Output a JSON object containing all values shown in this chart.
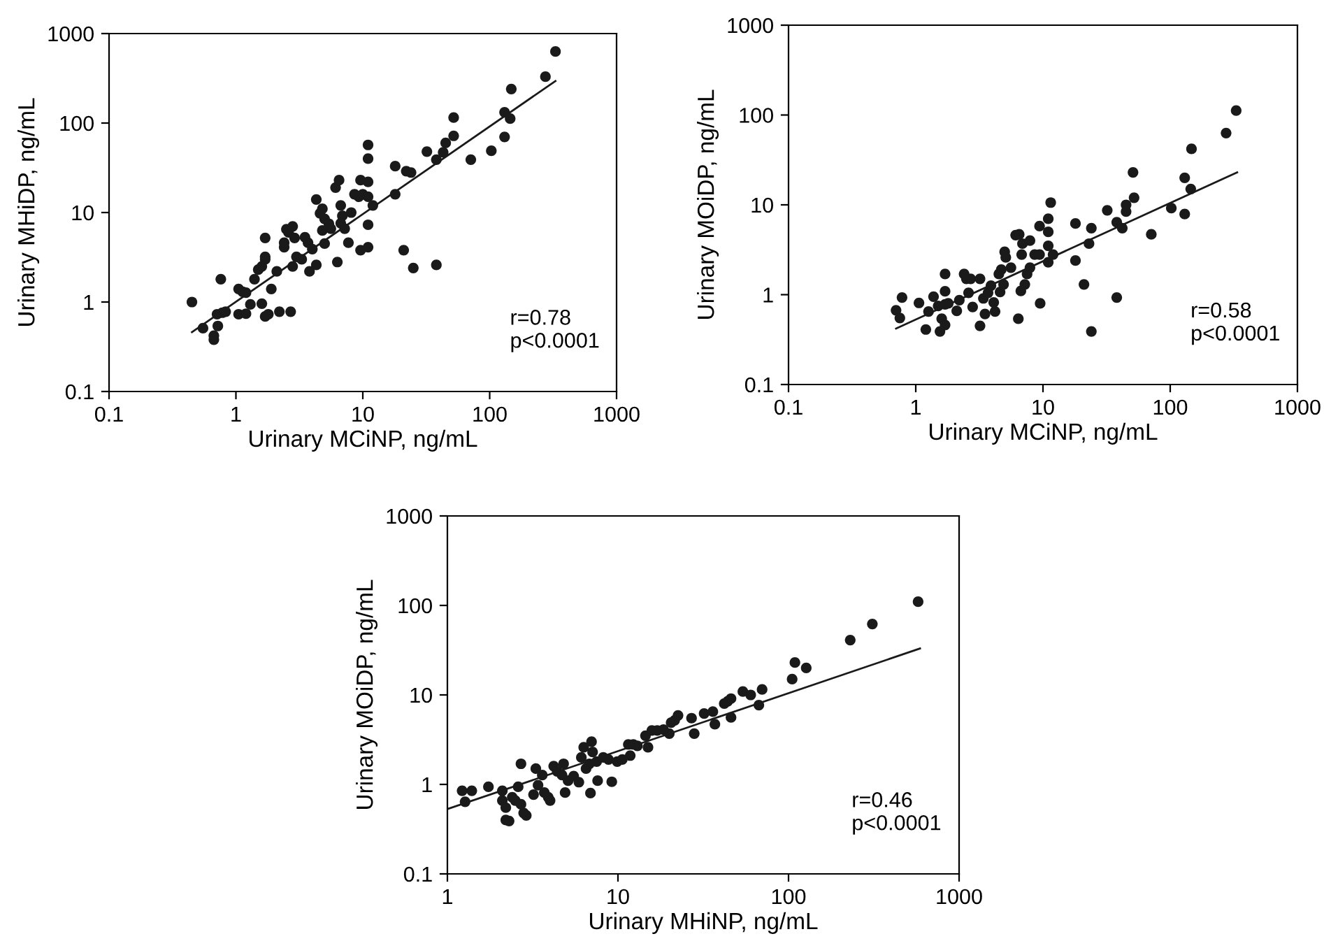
{
  "chart_data": [
    {
      "type": "scatter",
      "xlabel": "Urinary MCiNP, ng/mL",
      "ylabel": "Urinary MHiDP, ng/mL",
      "log": "xy",
      "xlim": [
        0.1,
        1000
      ],
      "ylim": [
        0.1,
        1000
      ],
      "xticks": [
        0.1,
        1,
        10,
        100,
        1000
      ],
      "yticks": [
        0.1,
        1,
        10,
        100,
        1000
      ],
      "annotations": [
        "r=0.78\np<0.0001"
      ],
      "series": [
        {
          "marker": "circle",
          "color": "#1a1a1a",
          "x": [
            0.45,
            0.55,
            0.67,
            0.67,
            0.72,
            0.71,
            0.78,
            0.83,
            0.76,
            1.05,
            1.13,
            1.2,
            1.05,
            1.2,
            1.3,
            1.4,
            1.5,
            1.6,
            1.7,
            1.7,
            1.6,
            1.7,
            1.8,
            1.9,
            1.7,
            2.1,
            2.2,
            2.7,
            2.4,
            2.4,
            2.5,
            2.6,
            2.8,
            2.9,
            3.0,
            3.3,
            3.5,
            3.7,
            4.0,
            3.8,
            2.8,
            4.3,
            4.3,
            4.6,
            4.8,
            5.0,
            4.8,
            5.4,
            5.6,
            5.0,
            6.3,
            6.1,
            6.5,
            6.7,
            6.9,
            6.7,
            7.2,
            7.7,
            8.1,
            8.6,
            9.6,
            9.3,
            10,
            11,
            11,
            11,
            11,
            12,
            11,
            9.6,
            11,
            18,
            18,
            22,
            24,
            21,
            25,
            38,
            32,
            38,
            43,
            45,
            52,
            52,
            71,
            103,
            131,
            131,
            145,
            148,
            275,
            330
          ],
          "values": [
            1.0,
            0.51,
            0.38,
            0.42,
            0.54,
            0.73,
            0.76,
            0.78,
            1.8,
            1.4,
            1.3,
            1.27,
            0.73,
            0.74,
            0.94,
            1.8,
            2.3,
            2.5,
            3.0,
            3.2,
            0.96,
            0.69,
            0.73,
            1.4,
            5.2,
            2.2,
            0.78,
            0.78,
            4.1,
            4.6,
            6.5,
            6.0,
            7.0,
            5.2,
            3.2,
            3.0,
            5.3,
            4.6,
            3.9,
            2.2,
            2.5,
            2.6,
            14,
            9.8,
            11,
            8.5,
            6.3,
            7.5,
            6.6,
            4.5,
            2.8,
            19,
            23,
            12,
            9.2,
            7.6,
            6.6,
            4.6,
            10,
            16,
            23,
            15,
            16,
            15,
            22,
            40,
            57,
            12,
            7.3,
            3.8,
            4.1,
            16,
            33,
            29,
            28,
            3.8,
            2.4,
            2.6,
            48,
            39,
            47,
            60,
            115,
            72,
            39,
            49,
            70,
            132,
            112,
            240,
            330,
            630
          ]
        },
        {
          "type": "line",
          "color": "#1a1a1a",
          "x": [
            0.45,
            330
          ],
          "values": [
            0.46,
            295
          ]
        }
      ]
    },
    {
      "type": "scatter",
      "xlabel": "Urinary MCiNP, ng/mL",
      "ylabel": "Urinary MOiDP, ng/mL",
      "log": "xy",
      "xlim": [
        0.1,
        1000
      ],
      "ylim": [
        0.1,
        1000
      ],
      "xticks": [
        0.1,
        1,
        10,
        100,
        1000
      ],
      "yticks": [
        0.1,
        1,
        10,
        100,
        1000
      ],
      "annotations": [
        "r=0.58\np<0.0001"
      ],
      "series": [
        {
          "marker": "circle",
          "color": "#1a1a1a",
          "x": [
            0.7,
            0.75,
            0.78,
            1.06,
            1.2,
            1.26,
            1.38,
            1.5,
            1.7,
            1.8,
            1.6,
            1.7,
            1.55,
            1.7,
            1.7,
            2.1,
            2.2,
            2.4,
            2.5,
            2.7,
            2.6,
            2.8,
            3.2,
            3.2,
            3.4,
            3.7,
            3.9,
            3.5,
            4.2,
            4.1,
            4.5,
            4.7,
            4.6,
            4.9,
            5.0,
            5.1,
            5.6,
            6.1,
            6.5,
            6.4,
            6.7,
            6.8,
            6.9,
            7.2,
            7.5,
            7.9,
            7.9,
            8.6,
            9.4,
            9.4,
            9.5,
            11,
            11,
            11,
            11,
            11.5,
            12,
            18,
            18,
            21,
            23,
            24,
            24,
            32,
            38,
            38,
            42,
            45,
            45,
            51,
            52,
            71,
            102,
            130,
            130,
            145,
            147,
            275,
            330
          ],
          "values": [
            0.67,
            0.55,
            0.93,
            0.81,
            0.41,
            0.65,
            0.95,
            0.75,
            0.78,
            0.8,
            0.54,
            0.46,
            0.39,
            1.7,
            1.09,
            0.66,
            0.87,
            1.7,
            1.5,
            1.5,
            1.05,
            0.73,
            0.45,
            1.5,
            0.91,
            1.05,
            1.26,
            0.61,
            0.65,
            0.82,
            1.7,
            1.9,
            1.07,
            1.3,
            3.0,
            2.6,
            2.0,
            4.6,
            4.7,
            0.54,
            1.1,
            2.8,
            3.7,
            1.3,
            1.7,
            2.0,
            4.0,
            2.8,
            2.8,
            5.8,
            0.8,
            2.3,
            3.5,
            5.0,
            7.0,
            10.6,
            2.8,
            2.4,
            6.2,
            1.3,
            3.7,
            5.5,
            0.39,
            8.7,
            0.93,
            6.4,
            5.5,
            8.4,
            10,
            23,
            12,
            4.7,
            9.2,
            20,
            7.9,
            15,
            42,
            63,
            112
          ]
        },
        {
          "type": "line",
          "color": "#1a1a1a",
          "x": [
            0.7,
            336
          ],
          "values": [
            0.42,
            23
          ]
        }
      ]
    },
    {
      "type": "scatter",
      "xlabel": "Urinary MHiNP, ng/mL",
      "ylabel": "Urinary MOiDP, ng/mL",
      "log": "xy",
      "xlim": [
        1,
        1000
      ],
      "ylim": [
        0.1,
        1000
      ],
      "xticks": [
        1,
        10,
        100,
        1000
      ],
      "yticks": [
        0.1,
        1,
        10,
        100,
        1000
      ],
      "annotations": [
        "r=0.46\np<0.0001"
      ],
      "series": [
        {
          "marker": "circle",
          "color": "#1a1a1a",
          "x": [
            1.22,
            1.27,
            1.39,
            1.74,
            2.1,
            2.1,
            2.2,
            2.2,
            2.3,
            2.4,
            2.5,
            2.6,
            2.7,
            2.7,
            2.8,
            2.9,
            3.2,
            3.3,
            3.4,
            3.6,
            3.7,
            3.9,
            4.0,
            4.2,
            4.4,
            4.7,
            4.8,
            4.9,
            5.1,
            5.5,
            5.9,
            6.1,
            6.3,
            7.0,
            7.1,
            6.5,
            6.8,
            6.9,
            7.6,
            7.5,
            8.2,
            8.8,
            9.2,
            9.9,
            10.6,
            11.5,
            12.3,
            11.8,
            13,
            14.5,
            15,
            15.8,
            17,
            18.5,
            20,
            20.5,
            21.5,
            22.5,
            28,
            27,
            32,
            36,
            37,
            42,
            44,
            46,
            46,
            54,
            60,
            67,
            70,
            105,
            109,
            127,
            230,
            310,
            575
          ],
          "values": [
            0.85,
            0.64,
            0.85,
            0.94,
            0.85,
            0.66,
            0.55,
            0.4,
            0.39,
            0.72,
            0.66,
            0.94,
            1.7,
            0.6,
            0.48,
            0.45,
            0.77,
            1.5,
            0.98,
            1.27,
            0.81,
            0.72,
            0.66,
            1.6,
            1.4,
            1.27,
            1.7,
            0.81,
            1.1,
            1.24,
            1.06,
            2.0,
            2.6,
            3.0,
            2.3,
            1.5,
            1.7,
            0.8,
            1.1,
            1.8,
            2.0,
            1.9,
            1.07,
            1.8,
            1.9,
            2.8,
            2.8,
            2.1,
            2.7,
            3.5,
            2.6,
            4.0,
            4.0,
            4.1,
            3.7,
            4.9,
            5.2,
            5.9,
            3.7,
            5.5,
            6.2,
            6.5,
            4.7,
            8.0,
            8.5,
            9.1,
            5.6,
            10.9,
            10,
            7.7,
            11.5,
            15,
            23,
            20,
            41,
            62,
            110
          ]
        },
        {
          "type": "line",
          "color": "#1a1a1a",
          "x": [
            1,
            590
          ],
          "values": [
            0.53,
            33
          ]
        }
      ]
    }
  ]
}
